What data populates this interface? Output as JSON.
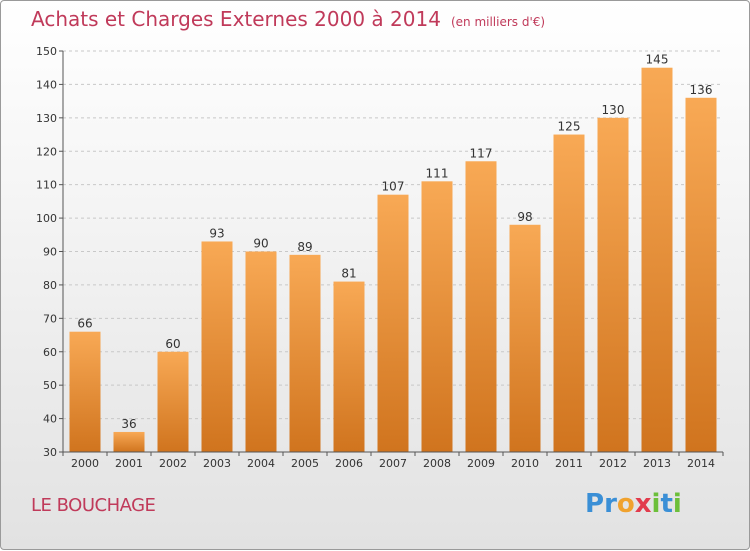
{
  "header": {
    "title": "Achats et Charges Externes 2000 à 2014",
    "subtitle": "(en milliers d'€)"
  },
  "footer": {
    "place": "LE BOUCHAGE",
    "brand_letters": [
      "P",
      "r",
      "o",
      "x",
      "i",
      "t",
      "i"
    ],
    "brand_colors": [
      "#3a8fd6",
      "#3a8fd6",
      "#f0a22e",
      "#e23b4c",
      "#6cbf3a",
      "#3a8fd6",
      "#6cbf3a"
    ]
  },
  "colors": {
    "title": "#c03a5a",
    "bar_light": "#f8a955",
    "bar_dark": "#d0741e",
    "grid": "#c8c8c8"
  },
  "chart_data": {
    "type": "bar",
    "title": "Achats et Charges Externes 2000 à 2014",
    "subtitle": "(en milliers d'€)",
    "categories": [
      "2000",
      "2001",
      "2002",
      "2003",
      "2004",
      "2005",
      "2006",
      "2007",
      "2008",
      "2009",
      "2010",
      "2011",
      "2012",
      "2013",
      "2014"
    ],
    "values": [
      66,
      36,
      60,
      93,
      90,
      89,
      81,
      107,
      111,
      117,
      98,
      125,
      130,
      145,
      136
    ],
    "ylim": [
      30,
      150
    ],
    "yticks": [
      30,
      40,
      50,
      60,
      70,
      80,
      90,
      100,
      110,
      120,
      130,
      140,
      150
    ],
    "grid": true,
    "xlabel": "",
    "ylabel": ""
  }
}
